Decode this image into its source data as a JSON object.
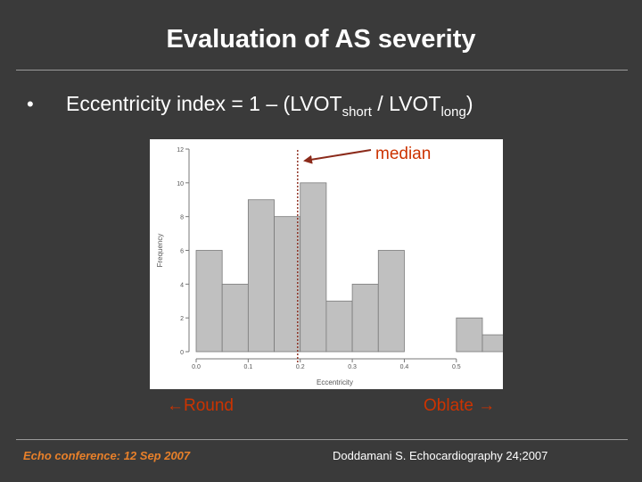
{
  "title": "Evaluation of AS severity",
  "bullet": "•",
  "formula": {
    "prefix": "Eccentricity index = 1 – (LVOT",
    "sub1": "short",
    "middle": " / LVOT",
    "sub2": "long",
    "suffix": ")"
  },
  "annotations": {
    "median": "median",
    "round": "←Round",
    "oblate": "Oblate →"
  },
  "footer": {
    "left": "Echo conference: 12 Sep 2007",
    "right": "Doddamani S. Echocardiography 24;2007"
  },
  "colors": {
    "bar_fill": "#c0c0c0",
    "bar_stroke": "#7a7a7a",
    "median_line": "#8b2a1a",
    "annotation": "#cc3300"
  },
  "chart_data": {
    "type": "bar",
    "xlabel": "Eccentricity",
    "ylabel": "Frequency",
    "bin_width": 0.05,
    "bin_starts": [
      0.0,
      0.05,
      0.1,
      0.15,
      0.2,
      0.25,
      0.3,
      0.35,
      0.4,
      0.45,
      0.5,
      0.55
    ],
    "values": [
      6,
      4,
      9,
      8,
      10,
      3,
      4,
      6,
      0,
      0,
      2,
      1
    ],
    "xlim": [
      0.0,
      0.55
    ],
    "ylim": [
      0,
      12
    ],
    "xticks": [
      0.0,
      0.1,
      0.2,
      0.3,
      0.4,
      0.5
    ],
    "xtick_labels": [
      "0.0",
      "0.1",
      "0.2",
      "0.3",
      "0.4",
      "0.5"
    ],
    "yticks": [
      0,
      2,
      4,
      6,
      8,
      10,
      12
    ],
    "ytick_labels": [
      "0",
      "2",
      "4",
      "6",
      "8",
      "10",
      "12"
    ],
    "median": 0.195,
    "grid": false
  }
}
